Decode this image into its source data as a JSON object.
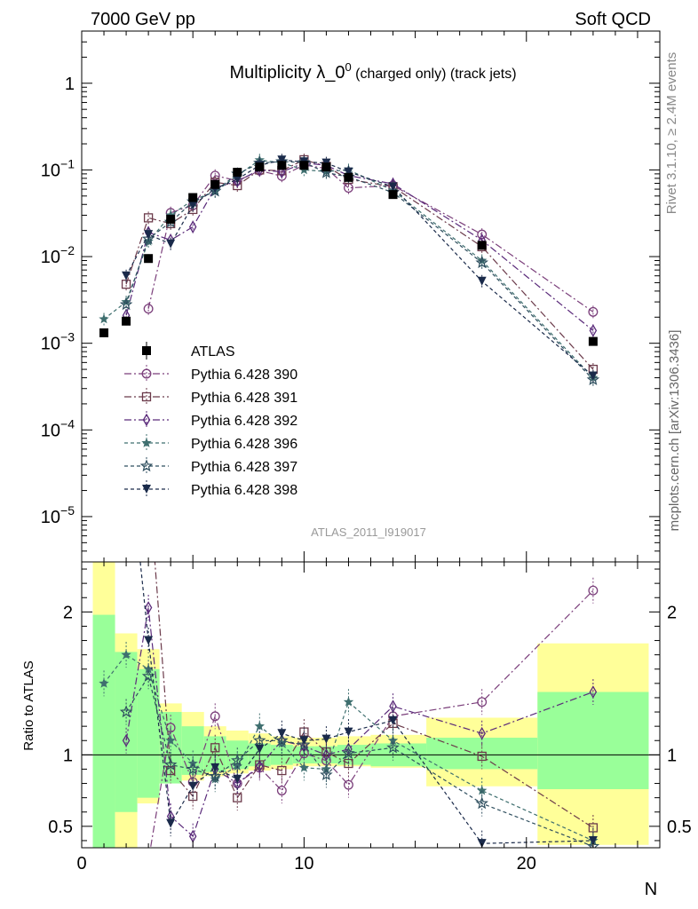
{
  "header": {
    "energy_label": "7000 GeV pp",
    "process_label": "Soft QCD",
    "rivet_label": "Rivet 3.1.10, ≥ 2.4M events",
    "site_label": "mcplots.cern.ch [arXiv:1306.3436]"
  },
  "colors": {
    "ATLAS": "#000000",
    "Pythia 6.428 390": "#7b3f7b",
    "Pythia 6.428 391": "#6b3a4a",
    "Pythia 6.428 392": "#5a2a7a",
    "Pythia 6.428 396": "#3f6f6f",
    "Pythia 6.428 397": "#2f4f5f",
    "Pythia 6.428 398": "#1a2a4a",
    "band_inner": "#99ff99",
    "band_outer": "#ffff99"
  },
  "chart_data": {
    "type": "scatter",
    "title_main": "Multiplicity λ_0",
    "title_sup": "0",
    "title_suffix": " (charged only) (track jets)",
    "analysis_label": "ATLAS_2011_I919017",
    "xlabel": "N",
    "ratio_ylabel": "Ratio to ATLAS",
    "xlim": [
      0,
      26
    ],
    "main_ylim": [
      3e-06,
      4
    ],
    "main_yscale": "log",
    "ratio_ylim": [
      0.35,
      2.35
    ],
    "x_ticks": [
      0,
      10,
      20
    ],
    "main_y_tick_labels": [
      "1",
      "10^-1",
      "10^-2",
      "10^-3",
      "10^-4",
      "10^-5"
    ],
    "ratio_y_ticks": [
      0.5,
      1,
      2
    ],
    "legend_position": "middle-left",
    "reference": {
      "name": "ATLAS",
      "x": [
        1,
        2,
        3,
        4,
        5,
        6,
        7,
        8,
        9,
        10,
        11,
        12,
        14,
        18,
        23
      ],
      "y": [
        0.00132,
        0.0018,
        0.0095,
        0.027,
        0.048,
        0.068,
        0.094,
        0.108,
        0.113,
        0.113,
        0.108,
        0.082,
        0.052,
        0.0135,
        0.00105
      ],
      "bins": [
        [
          0.5,
          1.5
        ],
        [
          1.5,
          2.5
        ],
        [
          2.5,
          3.5
        ],
        [
          3.5,
          4.5
        ],
        [
          4.5,
          5.5
        ],
        [
          5.5,
          6.5
        ],
        [
          6.5,
          7.5
        ],
        [
          7.5,
          8.5
        ],
        [
          8.5,
          9.5
        ],
        [
          9.5,
          10.5
        ],
        [
          10.5,
          11.5
        ],
        [
          11.5,
          13
        ],
        [
          13,
          15.5
        ],
        [
          15.5,
          20.5
        ],
        [
          20.5,
          25.5
        ]
      ],
      "band_inner": [
        [
          0.3,
          1.98
        ],
        [
          0.6,
          1.72
        ],
        [
          0.7,
          1.6
        ],
        [
          0.8,
          1.3
        ],
        [
          0.86,
          1.2
        ],
        [
          0.88,
          1.13
        ],
        [
          0.9,
          1.1
        ],
        [
          0.92,
          1.08
        ],
        [
          0.93,
          1.07
        ],
        [
          0.94,
          1.06
        ],
        [
          0.94,
          1.06
        ],
        [
          0.93,
          1.07
        ],
        [
          0.92,
          1.08
        ],
        [
          0.9,
          1.12
        ],
        [
          0.76,
          1.44
        ]
      ],
      "band_outer": [
        [
          0.3,
          2.35
        ],
        [
          0.3,
          1.85
        ],
        [
          0.66,
          1.74
        ],
        [
          0.8,
          1.36
        ],
        [
          0.82,
          1.3
        ],
        [
          0.85,
          1.2
        ],
        [
          0.87,
          1.17
        ],
        [
          0.89,
          1.15
        ],
        [
          0.9,
          1.13
        ],
        [
          0.92,
          1.12
        ],
        [
          0.92,
          1.12
        ],
        [
          0.92,
          1.13
        ],
        [
          0.91,
          1.14
        ],
        [
          0.78,
          1.26
        ],
        [
          0.37,
          1.78
        ]
      ]
    },
    "series": [
      {
        "name": "Pythia 6.428 390",
        "marker": "circle-open",
        "dash": "8,3,2,3",
        "x": [
          3,
          4,
          5,
          6,
          7,
          8,
          9,
          10,
          11,
          12,
          14,
          18,
          23
        ],
        "y": [
          0.0025,
          0.032,
          0.039,
          0.086,
          0.075,
          0.098,
          0.085,
          0.114,
          0.104,
          0.062,
          0.066,
          0.018,
          0.0023
        ],
        "ratio": [
          0.26,
          1.19,
          0.81,
          1.27,
          0.8,
          0.91,
          0.75,
          1.01,
          0.96,
          0.79,
          1.27,
          1.37,
          2.15
        ]
      },
      {
        "name": "Pythia 6.428 391",
        "marker": "square-open",
        "dash": "8,3,2,3",
        "x": [
          2,
          3,
          4,
          5,
          6,
          7,
          8,
          9,
          10,
          11,
          12,
          14,
          18,
          23
        ],
        "y": [
          0.0048,
          0.028,
          0.024,
          0.035,
          0.072,
          0.066,
          0.1,
          0.098,
          0.131,
          0.11,
          0.078,
          0.064,
          0.013,
          0.0005
        ],
        "ratio": [
          2.67,
          2.95,
          0.89,
          0.71,
          1.05,
          0.7,
          0.93,
          0.89,
          1.16,
          1.02,
          0.94,
          1.22,
          0.99,
          0.49
        ]
      },
      {
        "name": "Pythia 6.428 392",
        "marker": "diamond-open",
        "dash": "8,3,2,3",
        "x": [
          2,
          3,
          4,
          5,
          6,
          7,
          8,
          9,
          10,
          11,
          12,
          14,
          18,
          23
        ],
        "y": [
          0.0021,
          0.019,
          0.0155,
          0.022,
          0.062,
          0.074,
          0.1,
          0.095,
          0.12,
          0.113,
          0.086,
          0.069,
          0.0155,
          0.0014
        ],
        "ratio": [
          1.1,
          2.03,
          0.57,
          0.43,
          0.9,
          0.8,
          0.92,
          1.1,
          1.06,
          1.0,
          1.04,
          1.34,
          1.15,
          1.44
        ]
      },
      {
        "name": "Pythia 6.428 396",
        "marker": "star-filled",
        "dash": "4,3",
        "x": [
          1,
          2,
          3,
          4,
          5,
          6,
          7,
          8,
          9,
          10,
          11,
          12,
          14,
          18,
          23
        ],
        "y": [
          0.0019,
          0.003,
          0.015,
          0.03,
          0.045,
          0.056,
          0.086,
          0.13,
          0.121,
          0.1,
          0.096,
          0.1,
          0.058,
          0.009,
          0.0004
        ],
        "ratio": [
          1.5,
          1.7,
          1.6,
          1.1,
          0.94,
          0.83,
          0.92,
          1.2,
          1.08,
          0.91,
          0.9,
          1.37,
          1.1,
          0.75,
          0.4
        ]
      },
      {
        "name": "Pythia 6.428 397",
        "marker": "star-open",
        "dash": "4,3",
        "x": [
          2,
          3,
          4,
          5,
          6,
          7,
          8,
          9,
          10,
          11,
          12,
          14,
          18,
          23
        ],
        "y": [
          0.0028,
          0.016,
          0.025,
          0.043,
          0.057,
          0.09,
          0.12,
          0.125,
          0.122,
          0.093,
          0.083,
          0.055,
          0.0085,
          0.00038
        ],
        "ratio": [
          1.3,
          1.55,
          0.93,
          0.9,
          0.85,
          0.96,
          1.1,
          1.1,
          1.07,
          0.86,
          1.01,
          1.05,
          0.66,
          0.36
        ]
      },
      {
        "name": "Pythia 6.428 398",
        "marker": "triangle-down-filled",
        "dash": "4,3",
        "x": [
          2,
          3,
          4,
          5,
          6,
          7,
          8,
          9,
          10,
          11,
          12,
          14,
          18,
          23
        ],
        "y": [
          0.006,
          0.018,
          0.014,
          0.039,
          0.061,
          0.078,
          0.113,
          0.13,
          0.124,
          0.12,
          0.095,
          0.064,
          0.0052,
          0.00042
        ],
        "ratio": [
          3.3,
          1.8,
          0.52,
          0.78,
          0.91,
          0.83,
          1.04,
          1.15,
          1.1,
          1.11,
          1.16,
          1.24,
          0.38,
          0.4
        ]
      }
    ]
  }
}
